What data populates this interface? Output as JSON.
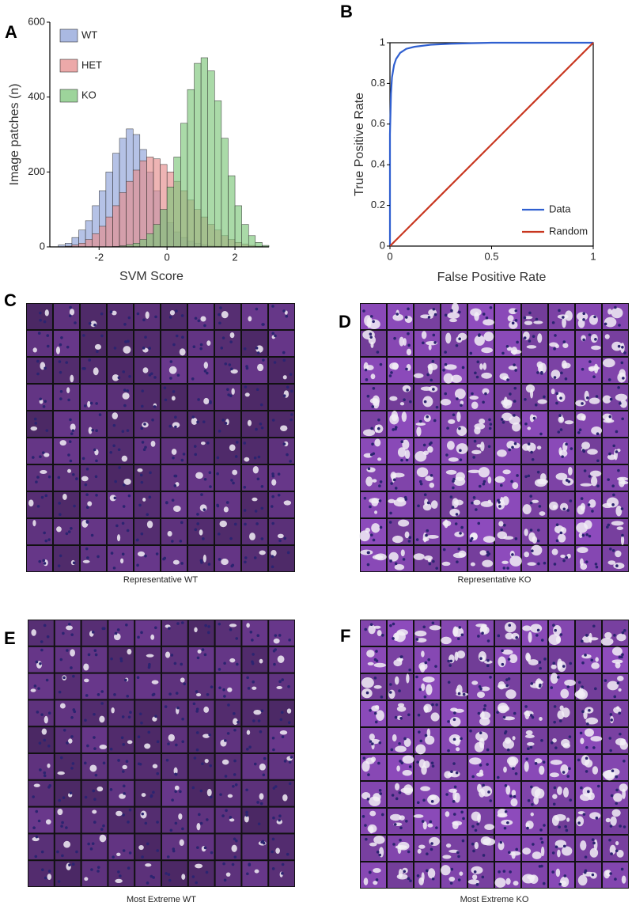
{
  "chart_data": [
    {
      "type": "histogram",
      "label": "A",
      "xlabel": "SVM Score",
      "ylabel": "Image patches (n)",
      "bins": [
        -3.2,
        -3.0,
        -2.8,
        -2.6,
        -2.4,
        -2.2,
        -2.0,
        -1.8,
        -1.6,
        -1.4,
        -1.2,
        -1.0,
        -0.8,
        -0.6,
        -0.4,
        -0.2,
        0.0,
        0.2,
        0.4,
        0.6,
        0.8,
        1.0,
        1.2,
        1.4,
        1.6,
        1.8,
        2.0,
        2.2,
        2.4,
        2.6,
        2.8,
        3.0
      ],
      "series": [
        {
          "name": "WT",
          "color": "#8ea2d8",
          "values": [
            5,
            10,
            25,
            45,
            70,
            110,
            150,
            200,
            250,
            290,
            315,
            300,
            260,
            200,
            150,
            100,
            65,
            40,
            25,
            15,
            10,
            5,
            3,
            2,
            1,
            0,
            0,
            0,
            0,
            0,
            0
          ]
        },
        {
          "name": "HET",
          "color": "#e58c8c",
          "values": [
            0,
            2,
            5,
            10,
            20,
            35,
            55,
            80,
            110,
            145,
            175,
            205,
            230,
            240,
            235,
            220,
            200,
            175,
            150,
            125,
            100,
            80,
            60,
            45,
            30,
            20,
            12,
            7,
            4,
            2,
            1
          ]
        },
        {
          "name": "KO",
          "color": "#7cc67a",
          "values": [
            0,
            0,
            0,
            0,
            0,
            0,
            0,
            0,
            1,
            3,
            6,
            10,
            20,
            35,
            60,
            100,
            160,
            240,
            330,
            420,
            490,
            505,
            470,
            390,
            290,
            190,
            110,
            60,
            30,
            12,
            4
          ]
        }
      ],
      "xlim": [
        -3.45,
        3.0
      ],
      "xticks": [
        -2,
        0,
        2
      ],
      "ylim": [
        0,
        600
      ],
      "yticks": [
        0,
        200,
        400,
        600
      ],
      "legend": "upper left"
    },
    {
      "type": "line",
      "label": "B",
      "xlabel": "False Positive Rate",
      "ylabel": "True Positive Rate",
      "series": [
        {
          "name": "Data",
          "color": "#2f5fd0",
          "x": [
            0,
            0,
            0.005,
            0.01,
            0.02,
            0.03,
            0.05,
            0.08,
            0.12,
            0.2,
            0.3,
            0.5,
            0.7,
            1
          ],
          "values": [
            0,
            0.55,
            0.75,
            0.83,
            0.89,
            0.92,
            0.95,
            0.97,
            0.98,
            0.99,
            0.995,
            1,
            1,
            1
          ]
        },
        {
          "name": "Random",
          "color": "#c8361f",
          "x": [
            0,
            1
          ],
          "values": [
            0,
            1
          ]
        }
      ],
      "xlim": [
        0,
        1
      ],
      "xticks": [
        0,
        0.5,
        1
      ],
      "ylim": [
        0,
        1
      ],
      "yticks": [
        0,
        0.2,
        0.4,
        0.6,
        0.8,
        1
      ],
      "legend": "lower right"
    }
  ],
  "panels": [
    {
      "label": "C",
      "caption": "Representative WT",
      "kind": "WT"
    },
    {
      "label": "D",
      "caption": "Representative KO",
      "kind": "KO"
    },
    {
      "label": "E",
      "caption": "Most Extreme WT",
      "kind": "WT"
    },
    {
      "label": "F",
      "caption": "Most Extreme KO",
      "kind": "KO"
    }
  ]
}
